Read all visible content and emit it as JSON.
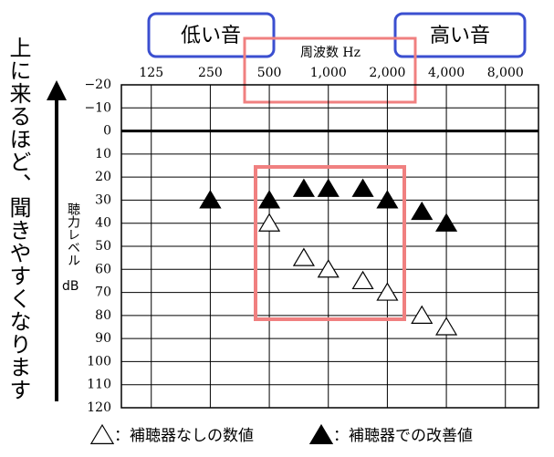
{
  "chart_data": {
    "type": "audiogram",
    "title": "周波数 Hz",
    "low_label": "低い音",
    "high_label": "高い音",
    "ylabel": "聴力レベル",
    "ylabel_unit": "dB",
    "side_note": "上に来るほど、聞きやすくなります",
    "xscale": "log",
    "xlim": [
      88,
      11800
    ],
    "xticks": [
      125,
      250,
      500,
      {
        "value": 1000,
        "label": "1,000"
      },
      {
        "value": 2000,
        "label": "2,000"
      },
      {
        "value": 4000,
        "label": "4,000"
      },
      {
        "value": 8000,
        "label": "8,000"
      }
    ],
    "ylim": [
      -20,
      120
    ],
    "y_inverted": true,
    "yticks": [
      {
        "value": -20,
        "label": "−20"
      },
      {
        "value": -10,
        "label": "−10"
      },
      0,
      10,
      20,
      30,
      40,
      50,
      60,
      70,
      80,
      90,
      100,
      110,
      120
    ],
    "grid": true,
    "series": [
      {
        "name": "：補聴器なしの数値",
        "marker": "open-triangle",
        "color": "#000000",
        "x": [
          250,
          500,
          750,
          1000,
          1500,
          2000,
          3000,
          4000
        ],
        "values": [
          30,
          40,
          55,
          60,
          65,
          70,
          80,
          85
        ]
      },
      {
        "name": "：補聴器での改善値",
        "marker": "filled-triangle",
        "color": "#000000",
        "x": [
          250,
          500,
          750,
          1000,
          1500,
          2000,
          3000,
          4000
        ],
        "values": [
          30,
          30,
          25,
          25,
          25,
          30,
          35,
          40
        ]
      }
    ]
  }
}
